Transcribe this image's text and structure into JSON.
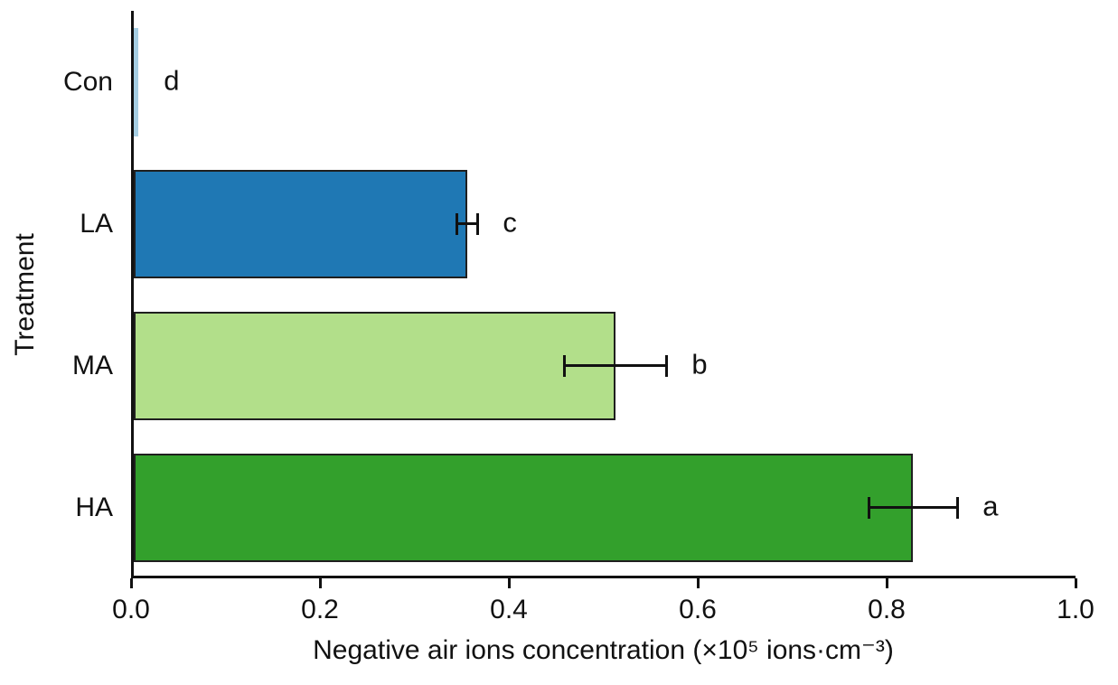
{
  "chart_data": {
    "type": "bar",
    "orientation": "horizontal",
    "title": "",
    "xlabel": "Negative air ions concentration (×10⁵ ions·cm⁻³)",
    "ylabel": "Treatment",
    "categories": [
      "Con",
      "LA",
      "MA",
      "HA"
    ],
    "values": [
      0.005,
      0.353,
      0.51,
      0.825
    ],
    "errors": [
      0,
      0.011,
      0.054,
      0.047
    ],
    "sig_letters": [
      "d",
      "c",
      "b",
      "a"
    ],
    "bar_colors": [
      "#a6cee3",
      "#1f78b4",
      "#b2df8a",
      "#33a02c"
    ],
    "bar_edge_color": "#1f1f1f",
    "axis_color": "#111111",
    "xlim": [
      0,
      1.0
    ],
    "xticks": [
      0.0,
      0.2,
      0.4,
      0.6,
      0.8,
      1.0
    ],
    "xtick_labels": [
      "0.0",
      "0.2",
      "0.4",
      "0.6",
      "0.8",
      "1.0"
    ],
    "grid": false,
    "legend_position": "none"
  }
}
